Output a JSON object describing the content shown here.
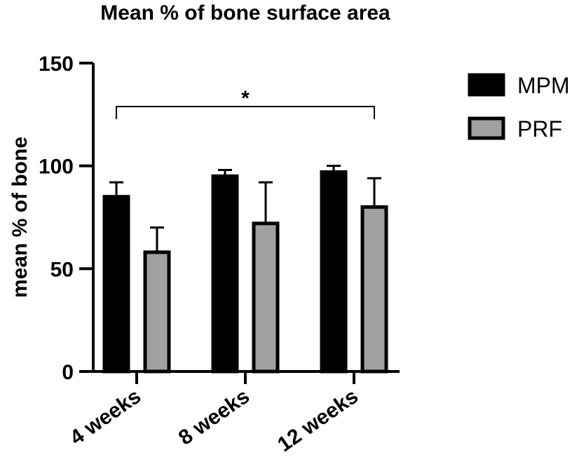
{
  "chart_data": {
    "type": "bar",
    "title": "Mean % of bone surface area",
    "xlabel": "",
    "ylabel": "mean % of bone",
    "ylim": [
      0,
      150
    ],
    "yticks": [
      0,
      50,
      100,
      150
    ],
    "categories": [
      "4 weeks",
      "8 weeks",
      "12 weeks"
    ],
    "series": [
      {
        "name": "MPM",
        "values": [
          85,
          95,
          97
        ],
        "errors": [
          7,
          3,
          3
        ],
        "color": "#000000"
      },
      {
        "name": "PRF",
        "values": [
          58,
          72,
          80
        ],
        "errors": [
          12,
          20,
          14
        ],
        "color": "#a0a0a0"
      }
    ],
    "legend_position": "right",
    "grid": false,
    "significance": {
      "label": "*",
      "from_category": "4 weeks",
      "to_category": "12 weeks"
    }
  }
}
